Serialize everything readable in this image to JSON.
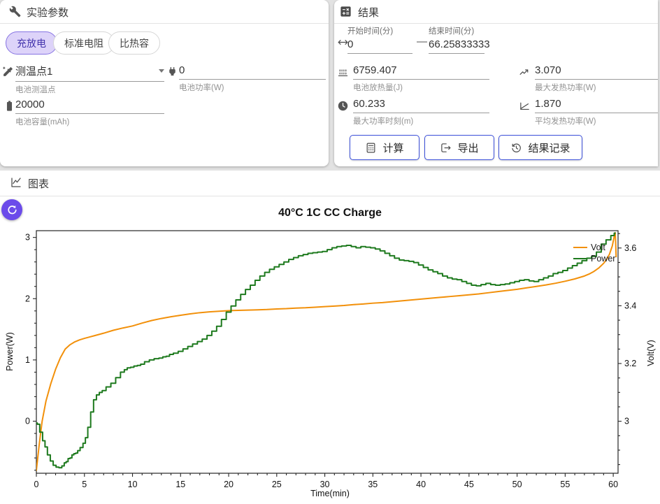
{
  "params": {
    "title": "实验参数",
    "chips": [
      {
        "label": "充放电",
        "selected": true
      },
      {
        "label": "标准电阻",
        "selected": false
      },
      {
        "label": "比热容",
        "selected": false
      }
    ],
    "probe": {
      "value": "测温点1",
      "label": "电池测温点"
    },
    "power": {
      "value": "0",
      "label": "电池功率(W)"
    },
    "capacity": {
      "value": "20000",
      "label": "电池容量(mAh)"
    }
  },
  "results": {
    "title": "结果",
    "start": {
      "label": "开始时间(分)",
      "value": "0"
    },
    "end": {
      "label": "结束时间(分)",
      "value": "66.25833333"
    },
    "separator": "—",
    "heat": {
      "value": "6759.407",
      "label": "电池放热量(J)"
    },
    "max_power": {
      "value": "3.070",
      "label": "最大发热功率(W)"
    },
    "max_power_time": {
      "value": "60.233",
      "label": "最大功率时刻(m)"
    },
    "avg_power": {
      "value": "1.870",
      "label": "平均发热功率(W)"
    },
    "buttons": {
      "calculate": "计算",
      "export": "导出",
      "records": "结果记录"
    }
  },
  "chart_section": {
    "title": "图表"
  },
  "accent_colors": {
    "chip_selected_bg": "#ddd3f9",
    "chip_selected_text": "#4434ad",
    "button_border": "#3c50da",
    "refresh_bg": "#6B4BEA"
  },
  "chart_data": {
    "type": "line",
    "title": "40°C 1C CC Charge",
    "xlabel": "Time(min)",
    "ylabel_left": "Power(W)",
    "ylabel_right": "Volt(V)",
    "xlim": [
      0,
      60.5
    ],
    "ylim_left": [
      -0.85,
      3.11
    ],
    "ylim_right": [
      2.82,
      3.66
    ],
    "xtick_step": 5,
    "xminor_step": 1,
    "yticks_left": [
      0,
      1,
      2,
      3
    ],
    "yminor_left": 0.2,
    "yticks_right": [
      3,
      3.2,
      3.4,
      3.6
    ],
    "yminor_right": 0.05,
    "grid": false,
    "legend_position": "upper right",
    "series": [
      {
        "name": "Volt",
        "axis": "right",
        "color": "#F2900A",
        "jagged": false,
        "points": [
          [
            0,
            2.83
          ],
          [
            0.3,
            2.92
          ],
          [
            0.6,
            3.0
          ],
          [
            1,
            3.07
          ],
          [
            1.5,
            3.13
          ],
          [
            2,
            3.18
          ],
          [
            2.5,
            3.22
          ],
          [
            3,
            3.25
          ],
          [
            3.5,
            3.265
          ],
          [
            4,
            3.275
          ],
          [
            4.5,
            3.282
          ],
          [
            5,
            3.287
          ],
          [
            6,
            3.296
          ],
          [
            7,
            3.305
          ],
          [
            8,
            3.315
          ],
          [
            9,
            3.323
          ],
          [
            10,
            3.33
          ],
          [
            11,
            3.34
          ],
          [
            12,
            3.349
          ],
          [
            13,
            3.356
          ],
          [
            14,
            3.362
          ],
          [
            15,
            3.367
          ],
          [
            16,
            3.372
          ],
          [
            17,
            3.376
          ],
          [
            18,
            3.379
          ],
          [
            19,
            3.381
          ],
          [
            20,
            3.383
          ],
          [
            21,
            3.384
          ],
          [
            22,
            3.385
          ],
          [
            23,
            3.386
          ],
          [
            24,
            3.387
          ],
          [
            25,
            3.389
          ],
          [
            26,
            3.39
          ],
          [
            27,
            3.392
          ],
          [
            28,
            3.393
          ],
          [
            29,
            3.395
          ],
          [
            30,
            3.397
          ],
          [
            31,
            3.399
          ],
          [
            32,
            3.401
          ],
          [
            33,
            3.404
          ],
          [
            34,
            3.406
          ],
          [
            35,
            3.409
          ],
          [
            36,
            3.411
          ],
          [
            37,
            3.414
          ],
          [
            38,
            3.417
          ],
          [
            39,
            3.42
          ],
          [
            40,
            3.423
          ],
          [
            41,
            3.426
          ],
          [
            42,
            3.429
          ],
          [
            43,
            3.432
          ],
          [
            44,
            3.435
          ],
          [
            45,
            3.438
          ],
          [
            46,
            3.441
          ],
          [
            47,
            3.445
          ],
          [
            48,
            3.449
          ],
          [
            49,
            3.453
          ],
          [
            50,
            3.457
          ],
          [
            51,
            3.462
          ],
          [
            52,
            3.467
          ],
          [
            53,
            3.472
          ],
          [
            54,
            3.478
          ],
          [
            55,
            3.485
          ],
          [
            56,
            3.493
          ],
          [
            57,
            3.503
          ],
          [
            57.5,
            3.51
          ],
          [
            58,
            3.519
          ],
          [
            58.5,
            3.531
          ],
          [
            59,
            3.547
          ],
          [
            59.3,
            3.56
          ],
          [
            59.6,
            3.578
          ],
          [
            59.9,
            3.607
          ],
          [
            60.1,
            3.64
          ],
          [
            60.2,
            3.653
          ],
          [
            60.25,
            3.62
          ],
          [
            60.3,
            3.57
          ]
        ]
      },
      {
        "name": "Power",
        "axis": "left",
        "color": "#1E7A1E",
        "jagged": true,
        "points": [
          [
            0,
            -0.03
          ],
          [
            0.2,
            -0.05
          ],
          [
            0.5,
            -0.18
          ],
          [
            0.8,
            -0.32
          ],
          [
            1,
            -0.42
          ],
          [
            1.3,
            -0.55
          ],
          [
            1.6,
            -0.65
          ],
          [
            1.9,
            -0.72
          ],
          [
            2.2,
            -0.75
          ],
          [
            2.5,
            -0.76
          ],
          [
            2.8,
            -0.73
          ],
          [
            3,
            -0.68
          ],
          [
            3.2,
            -0.66
          ],
          [
            3.4,
            -0.61
          ],
          [
            3.6,
            -0.6
          ],
          [
            3.8,
            -0.55
          ],
          [
            4,
            -0.53
          ],
          [
            4.2,
            -0.52
          ],
          [
            4.4,
            -0.48
          ],
          [
            4.7,
            -0.43
          ],
          [
            5,
            -0.36
          ],
          [
            5.2,
            -0.27
          ],
          [
            5.5,
            -0.1
          ],
          [
            5.8,
            0.15
          ],
          [
            6.1,
            0.35
          ],
          [
            6.4,
            0.43
          ],
          [
            6.7,
            0.47
          ],
          [
            7,
            0.5
          ],
          [
            7.5,
            0.56
          ],
          [
            8,
            0.62
          ],
          [
            8.5,
            0.71
          ],
          [
            9,
            0.8
          ],
          [
            9.3,
            0.84
          ],
          [
            9.6,
            0.87
          ],
          [
            10,
            0.88
          ],
          [
            10.3,
            0.9
          ],
          [
            10.7,
            0.91
          ],
          [
            11,
            0.93
          ],
          [
            11.5,
            0.97
          ],
          [
            12,
            1.0
          ],
          [
            12.5,
            1.02
          ],
          [
            13,
            1.03
          ],
          [
            13.3,
            1.05
          ],
          [
            13.7,
            1.06
          ],
          [
            14,
            1.09
          ],
          [
            14.5,
            1.11
          ],
          [
            15,
            1.14
          ],
          [
            15.5,
            1.18
          ],
          [
            16,
            1.22
          ],
          [
            16.5,
            1.26
          ],
          [
            17,
            1.3
          ],
          [
            17.5,
            1.34
          ],
          [
            18,
            1.4
          ],
          [
            18.5,
            1.47
          ],
          [
            19,
            1.55
          ],
          [
            19.5,
            1.66
          ],
          [
            20,
            1.78
          ],
          [
            20.5,
            1.88
          ],
          [
            21,
            1.98
          ],
          [
            21.5,
            2.07
          ],
          [
            22,
            2.15
          ],
          [
            22.5,
            2.22
          ],
          [
            23,
            2.3
          ],
          [
            23.5,
            2.37
          ],
          [
            24,
            2.43
          ],
          [
            24.5,
            2.48
          ],
          [
            25,
            2.52
          ],
          [
            25.5,
            2.56
          ],
          [
            26,
            2.6
          ],
          [
            26.5,
            2.64
          ],
          [
            27,
            2.67
          ],
          [
            27.5,
            2.7
          ],
          [
            28,
            2.72
          ],
          [
            28.5,
            2.74
          ],
          [
            29,
            2.75
          ],
          [
            29.5,
            2.76
          ],
          [
            30,
            2.77
          ],
          [
            30.5,
            2.8
          ],
          [
            31,
            2.83
          ],
          [
            31.5,
            2.85
          ],
          [
            32,
            2.86
          ],
          [
            32.5,
            2.87
          ],
          [
            33,
            2.85
          ],
          [
            33.5,
            2.83
          ],
          [
            34,
            2.85
          ],
          [
            34.5,
            2.84
          ],
          [
            35,
            2.83
          ],
          [
            35.5,
            2.81
          ],
          [
            36,
            2.78
          ],
          [
            36.5,
            2.74
          ],
          [
            37,
            2.7
          ],
          [
            37.5,
            2.66
          ],
          [
            38,
            2.63
          ],
          [
            38.5,
            2.62
          ],
          [
            39,
            2.61
          ],
          [
            39.5,
            2.59
          ],
          [
            40,
            2.55
          ],
          [
            40.5,
            2.51
          ],
          [
            41,
            2.47
          ],
          [
            41.5,
            2.44
          ],
          [
            42,
            2.41
          ],
          [
            42.5,
            2.37
          ],
          [
            43,
            2.34
          ],
          [
            43.5,
            2.32
          ],
          [
            44,
            2.31
          ],
          [
            44.5,
            2.28
          ],
          [
            45,
            2.25
          ],
          [
            45.5,
            2.22
          ],
          [
            46,
            2.21
          ],
          [
            46.5,
            2.23
          ],
          [
            47,
            2.25
          ],
          [
            47.5,
            2.23
          ],
          [
            48,
            2.22
          ],
          [
            48.5,
            2.23
          ],
          [
            49,
            2.24
          ],
          [
            49.5,
            2.26
          ],
          [
            50,
            2.28
          ],
          [
            50.5,
            2.3
          ],
          [
            51,
            2.31
          ],
          [
            51.5,
            2.29
          ],
          [
            52,
            2.28
          ],
          [
            52.5,
            2.31
          ],
          [
            53,
            2.34
          ],
          [
            53.5,
            2.37
          ],
          [
            54,
            2.41
          ],
          [
            54.5,
            2.43
          ],
          [
            55,
            2.46
          ],
          [
            55.5,
            2.5
          ],
          [
            56,
            2.54
          ],
          [
            56.5,
            2.58
          ],
          [
            57,
            2.62
          ],
          [
            57.5,
            2.66
          ],
          [
            58,
            2.69
          ],
          [
            58.5,
            2.76
          ],
          [
            59,
            2.89
          ],
          [
            59.5,
            2.96
          ],
          [
            60,
            3.03
          ],
          [
            60.2,
            3.07
          ]
        ]
      }
    ]
  }
}
